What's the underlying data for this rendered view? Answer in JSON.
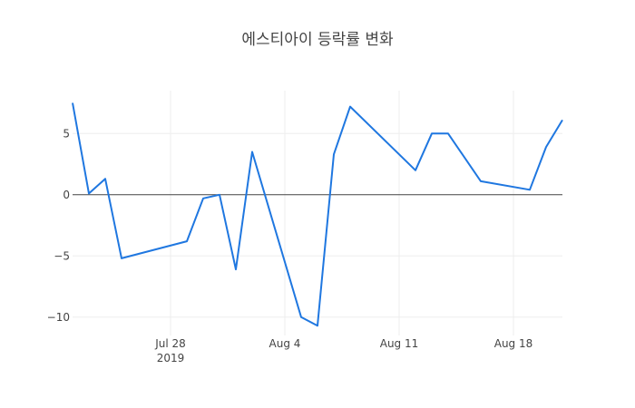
{
  "chart_data": {
    "type": "line",
    "title": "에스티아이 등락률 변화",
    "xlabel": "",
    "ylabel": "",
    "x_axis": {
      "type": "date",
      "range": [
        "2019-07-22",
        "2019-08-21"
      ],
      "tick_values": [
        "2019-07-28",
        "2019-08-04",
        "2019-08-11",
        "2019-08-18"
      ],
      "tick_labels": [
        "Jul 28",
        "Aug 4",
        "Aug 11",
        "Aug 18"
      ],
      "year_label": "2019"
    },
    "y_axis": {
      "range": [
        -11.5,
        8.5
      ],
      "tick_values": [
        5,
        0,
        -5,
        -10
      ],
      "tick_labels": [
        "5",
        "0",
        "−5",
        "−10"
      ]
    },
    "grid": true,
    "zero_line": true,
    "series": [
      {
        "color": "#1f77e0",
        "x": [
          "2019-07-22",
          "2019-07-23",
          "2019-07-24",
          "2019-07-25",
          "2019-07-29",
          "2019-07-30",
          "2019-07-31",
          "2019-08-01",
          "2019-08-02",
          "2019-08-05",
          "2019-08-06",
          "2019-08-07",
          "2019-08-08",
          "2019-08-12",
          "2019-08-13",
          "2019-08-14",
          "2019-08-16",
          "2019-08-19",
          "2019-08-20",
          "2019-08-21"
        ],
        "y": [
          7.5,
          0.1,
          1.3,
          -5.2,
          -3.8,
          -0.3,
          0.0,
          -6.1,
          3.5,
          -10.0,
          -10.7,
          3.3,
          7.2,
          2.0,
          5.0,
          5.0,
          1.1,
          0.4,
          3.9,
          6.1
        ]
      }
    ]
  }
}
